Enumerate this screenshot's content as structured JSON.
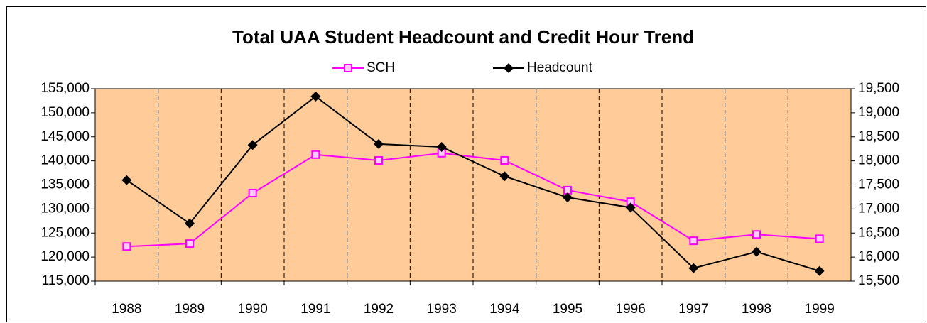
{
  "chart_data": {
    "type": "line",
    "title": "Total UAA Student Headcount and Credit Hour Trend",
    "categories": [
      "1988",
      "1989",
      "1990",
      "1991",
      "1992",
      "1993",
      "1994",
      "1995",
      "1996",
      "1997",
      "1998",
      "1999"
    ],
    "series": [
      {
        "name": "SCH",
        "color": "#ff00ff",
        "marker": "square",
        "values": [
          122200,
          122800,
          133300,
          141300,
          140100,
          141600,
          140100,
          133900,
          131500,
          123400,
          124700,
          123800
        ]
      },
      {
        "name": "Headcount",
        "color": "#000000",
        "marker": "diamond",
        "axis": "y2",
        "values": [
          17600,
          16700,
          18330,
          19340,
          18350,
          18290,
          17680,
          17240,
          17030,
          15770,
          16110,
          15710
        ]
      }
    ],
    "ylim": [
      115000,
      155000
    ],
    "yticks": [
      {
        "value": 115000,
        "label": "115,000"
      },
      {
        "value": 120000,
        "label": "120,000"
      },
      {
        "value": 125000,
        "label": "125,000"
      },
      {
        "value": 130000,
        "label": "130,000"
      },
      {
        "value": 135000,
        "label": "135,000"
      },
      {
        "value": 140000,
        "label": "140,000"
      },
      {
        "value": 145000,
        "label": "145,000"
      },
      {
        "value": 150000,
        "label": "150,000"
      },
      {
        "value": 155000,
        "label": "155,000"
      }
    ],
    "y2lim": [
      15500,
      19500
    ],
    "y2ticks": [
      {
        "value": 15500,
        "label": "15,500"
      },
      {
        "value": 16000,
        "label": "16,000"
      },
      {
        "value": 16500,
        "label": "16,500"
      },
      {
        "value": 17000,
        "label": "17,000"
      },
      {
        "value": 17500,
        "label": "17,500"
      },
      {
        "value": 18000,
        "label": "18,000"
      },
      {
        "value": 18500,
        "label": "18,500"
      },
      {
        "value": 19000,
        "label": "19,000"
      },
      {
        "value": 19500,
        "label": "19,500"
      }
    ],
    "plot_background": "#ffcc99",
    "grid": true,
    "legend": "top"
  }
}
